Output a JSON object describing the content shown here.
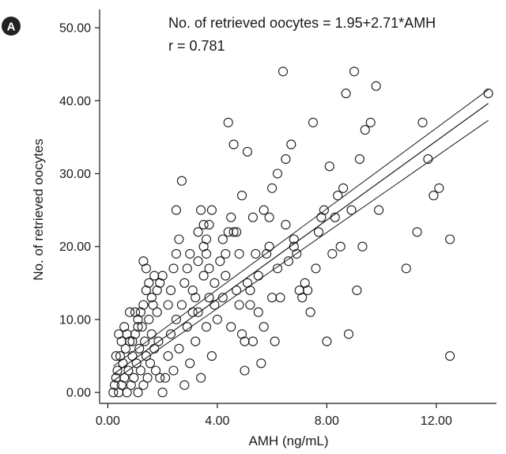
{
  "chart_data": {
    "type": "scatter",
    "panel_label": "A",
    "title": "",
    "xlabel": "AMH (ng/mL)",
    "ylabel": "No. of retrieved oocytes",
    "xlim": [
      -0.3,
      14.2
    ],
    "ylim": [
      -1.5,
      52.5
    ],
    "xticks": [
      0,
      4,
      8,
      12
    ],
    "xtick_labels": [
      "0.00",
      "4.00",
      "8.00",
      "12.00"
    ],
    "yticks": [
      0,
      10,
      20,
      30,
      40,
      50
    ],
    "ytick_labels": [
      "0.00",
      "10.00",
      "20.00",
      "30.00",
      "40.00",
      "50.00"
    ],
    "grid": false,
    "annotations": [
      "No. of retrieved oocytes = 1.95+2.71*AMH",
      "r = 0.781"
    ],
    "regression": {
      "intercept": 1.95,
      "slope": 2.71,
      "x_range": [
        0.2,
        13.9
      ]
    },
    "confidence_band": {
      "upper": {
        "x": [
          0.2,
          13.9
        ],
        "y": [
          3.6,
          41.5
        ]
      },
      "lower": {
        "x": [
          0.2,
          13.9
        ],
        "y": [
          1.6,
          37.3
        ]
      }
    },
    "points": [
      [
        0.2,
        0
      ],
      [
        0.25,
        1
      ],
      [
        0.3,
        2
      ],
      [
        0.35,
        3
      ],
      [
        0.4,
        0
      ],
      [
        0.45,
        5
      ],
      [
        0.5,
        1
      ],
      [
        0.55,
        4
      ],
      [
        0.6,
        2
      ],
      [
        0.65,
        6
      ],
      [
        0.7,
        0
      ],
      [
        0.75,
        3
      ],
      [
        0.8,
        7
      ],
      [
        0.85,
        1
      ],
      [
        0.9,
        5
      ],
      [
        0.95,
        2
      ],
      [
        1.0,
        8
      ],
      [
        1.05,
        4
      ],
      [
        1.1,
        0
      ],
      [
        1.15,
        6
      ],
      [
        1.2,
        3
      ],
      [
        1.25,
        9
      ],
      [
        1.3,
        1
      ],
      [
        1.35,
        7
      ],
      [
        1.4,
        5
      ],
      [
        1.45,
        2
      ],
      [
        1.5,
        10
      ],
      [
        1.55,
        4
      ],
      [
        1.6,
        8
      ],
      [
        1.65,
        12
      ],
      [
        1.7,
        6
      ],
      [
        1.75,
        3
      ],
      [
        1.8,
        11
      ],
      [
        1.85,
        7
      ],
      [
        1.9,
        2
      ],
      [
        0.3,
        5
      ],
      [
        0.5,
        7
      ],
      [
        0.7,
        8
      ],
      [
        0.9,
        7
      ],
      [
        1.1,
        9
      ],
      [
        1.2,
        11
      ],
      [
        1.3,
        12
      ],
      [
        1.4,
        14
      ],
      [
        1.5,
        15
      ],
      [
        1.6,
        13
      ],
      [
        1.7,
        16
      ],
      [
        1.8,
        14
      ],
      [
        1.3,
        18
      ],
      [
        1.4,
        17
      ],
      [
        1.1,
        10
      ],
      [
        0.8,
        11
      ],
      [
        1.0,
        11
      ],
      [
        0.6,
        9
      ],
      [
        0.4,
        8
      ],
      [
        1.9,
        15
      ],
      [
        2.0,
        16
      ],
      [
        2.0,
        0
      ],
      [
        2.1,
        2
      ],
      [
        2.2,
        5
      ],
      [
        2.3,
        8
      ],
      [
        2.4,
        3
      ],
      [
        2.5,
        10
      ],
      [
        2.6,
        6
      ],
      [
        2.7,
        12
      ],
      [
        2.8,
        1
      ],
      [
        2.9,
        9
      ],
      [
        3.0,
        4
      ],
      [
        3.1,
        14
      ],
      [
        3.2,
        7
      ],
      [
        3.3,
        11
      ],
      [
        3.4,
        2
      ],
      [
        3.5,
        16
      ],
      [
        3.6,
        9
      ],
      [
        3.7,
        13
      ],
      [
        3.8,
        5
      ],
      [
        3.9,
        12
      ],
      [
        2.2,
        12
      ],
      [
        2.3,
        14
      ],
      [
        2.4,
        17
      ],
      [
        2.5,
        19
      ],
      [
        2.6,
        21
      ],
      [
        2.5,
        25
      ],
      [
        2.7,
        29
      ],
      [
        2.8,
        15
      ],
      [
        2.9,
        17
      ],
      [
        3.0,
        19
      ],
      [
        3.1,
        11
      ],
      [
        3.2,
        13
      ],
      [
        3.3,
        22
      ],
      [
        3.4,
        25
      ],
      [
        3.5,
        23
      ],
      [
        3.6,
        21
      ],
      [
        3.7,
        23
      ],
      [
        3.8,
        25
      ],
      [
        3.9,
        15
      ],
      [
        3.3,
        18
      ],
      [
        3.5,
        20
      ],
      [
        3.6,
        19
      ],
      [
        3.7,
        17
      ],
      [
        4.0,
        10
      ],
      [
        4.1,
        18
      ],
      [
        4.2,
        13
      ],
      [
        4.3,
        16
      ],
      [
        4.4,
        37
      ],
      [
        4.5,
        9
      ],
      [
        4.6,
        34
      ],
      [
        4.7,
        22
      ],
      [
        4.8,
        19
      ],
      [
        4.9,
        27
      ],
      [
        5.0,
        7
      ],
      [
        5.1,
        33
      ],
      [
        5.2,
        14
      ],
      [
        5.3,
        24
      ],
      [
        5.4,
        19
      ],
      [
        5.5,
        11
      ],
      [
        5.6,
        4
      ],
      [
        5.7,
        25
      ],
      [
        5.8,
        19
      ],
      [
        5.9,
        24
      ],
      [
        6.0,
        28
      ],
      [
        6.1,
        7
      ],
      [
        6.2,
        17
      ],
      [
        6.3,
        13
      ],
      [
        6.4,
        44
      ],
      [
        6.5,
        32
      ],
      [
        6.6,
        18
      ],
      [
        6.7,
        34
      ],
      [
        6.8,
        21
      ],
      [
        6.9,
        19
      ],
      [
        4.2,
        21
      ],
      [
        4.3,
        19
      ],
      [
        4.4,
        22
      ],
      [
        4.5,
        24
      ],
      [
        4.6,
        22
      ],
      [
        4.7,
        14
      ],
      [
        4.8,
        12
      ],
      [
        4.9,
        8
      ],
      [
        5.0,
        3
      ],
      [
        5.1,
        15
      ],
      [
        5.2,
        12
      ],
      [
        5.3,
        7
      ],
      [
        5.5,
        16
      ],
      [
        5.7,
        9
      ],
      [
        5.9,
        20
      ],
      [
        6.0,
        13
      ],
      [
        6.2,
        30
      ],
      [
        6.5,
        23
      ],
      [
        6.8,
        20
      ],
      [
        7.0,
        14
      ],
      [
        7.1,
        13
      ],
      [
        7.2,
        15
      ],
      [
        7.3,
        14
      ],
      [
        7.4,
        11
      ],
      [
        7.5,
        37
      ],
      [
        7.6,
        17
      ],
      [
        7.7,
        22
      ],
      [
        7.8,
        24
      ],
      [
        7.9,
        25
      ],
      [
        8.0,
        7
      ],
      [
        8.1,
        31
      ],
      [
        8.2,
        19
      ],
      [
        8.3,
        24
      ],
      [
        8.4,
        27
      ],
      [
        8.5,
        20
      ],
      [
        8.6,
        28
      ],
      [
        8.7,
        41
      ],
      [
        8.8,
        8
      ],
      [
        8.9,
        25
      ],
      [
        9.0,
        44
      ],
      [
        9.1,
        14
      ],
      [
        9.2,
        32
      ],
      [
        9.3,
        20
      ],
      [
        9.4,
        36
      ],
      [
        9.6,
        37
      ],
      [
        9.8,
        42
      ],
      [
        9.9,
        25
      ],
      [
        10.9,
        17
      ],
      [
        11.3,
        22
      ],
      [
        11.5,
        37
      ],
      [
        11.7,
        32
      ],
      [
        11.9,
        27
      ],
      [
        12.1,
        28
      ],
      [
        12.5,
        21
      ],
      [
        12.5,
        5
      ],
      [
        13.9,
        41
      ]
    ]
  }
}
